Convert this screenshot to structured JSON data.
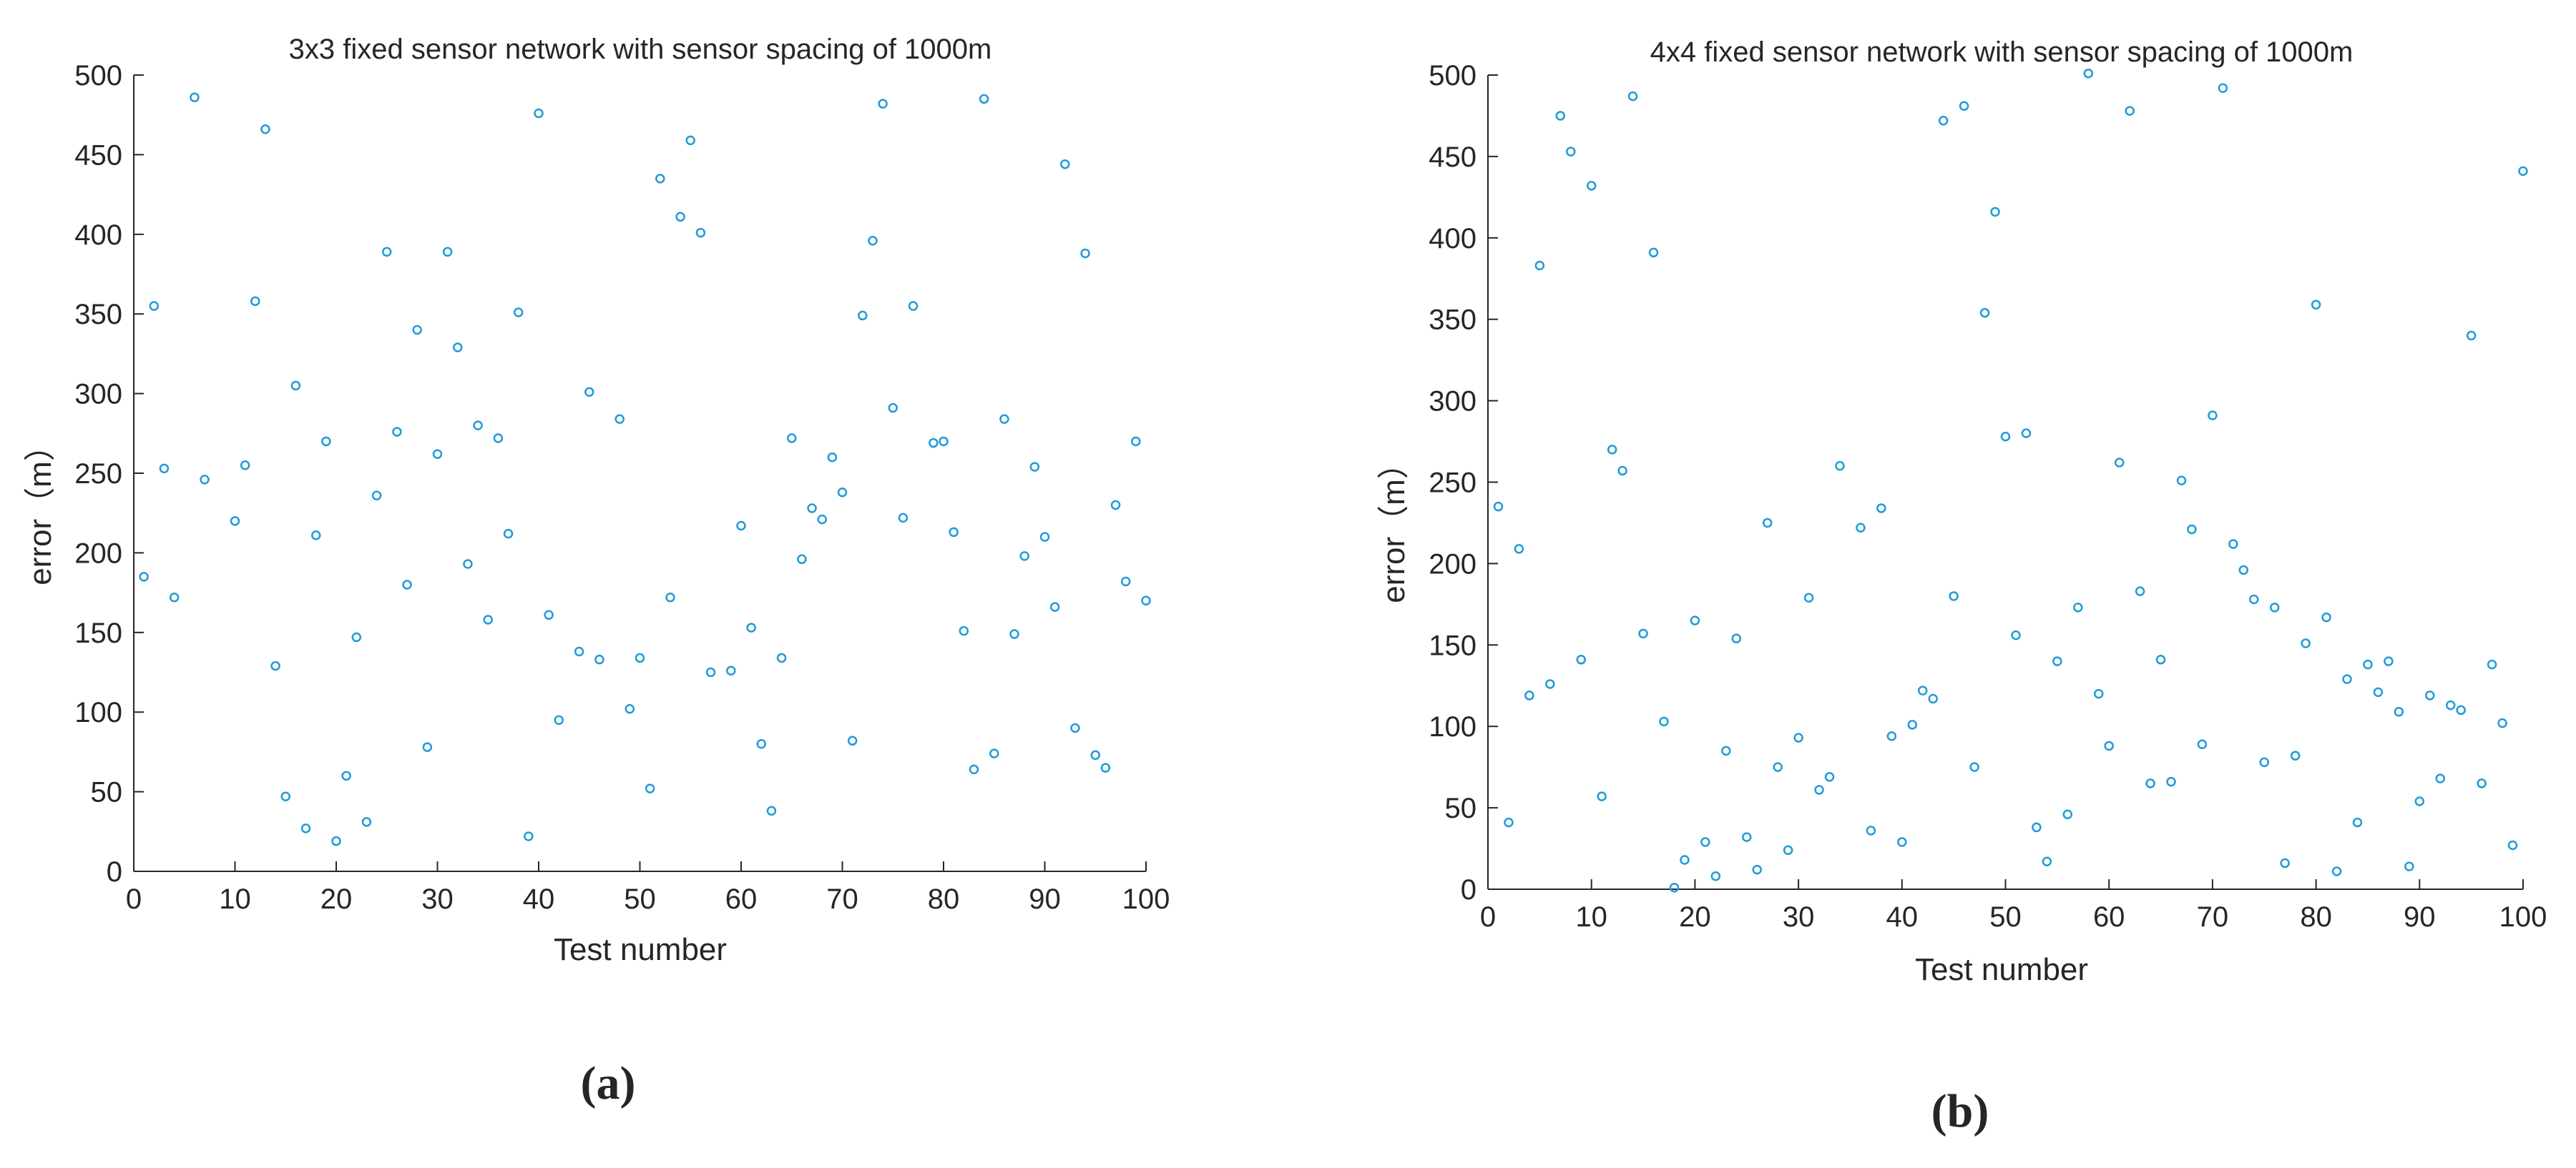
{
  "chart_data": [
    {
      "type": "scatter",
      "title": "3x3 fixed sensor network with sensor spacing of 1000m",
      "xlabel": "Test number",
      "ylabel": "error（m）",
      "xlim": [
        0,
        100
      ],
      "ylim": [
        0,
        500
      ],
      "x_ticks": [
        "0",
        "10",
        "20",
        "30",
        "40",
        "50",
        "60",
        "70",
        "80",
        "90",
        "100"
      ],
      "y_ticks": [
        "0",
        "50",
        "100",
        "150",
        "200",
        "250",
        "300",
        "350",
        "400",
        "450",
        "500"
      ],
      "grid": false,
      "marker": "open circle",
      "color": "#1f9bd7",
      "panel_label": "(a)",
      "series": [
        {
          "x": [
            1,
            2,
            3,
            4,
            6,
            7,
            10,
            11,
            12,
            13,
            14,
            15,
            16,
            17,
            18,
            19,
            20,
            21,
            22,
            23,
            24,
            25,
            26,
            27,
            28,
            29,
            30,
            31,
            32,
            33,
            34,
            35,
            36,
            37,
            38,
            39,
            40,
            41,
            42,
            44,
            45,
            46,
            48,
            49,
            50,
            51,
            52,
            53,
            54,
            55,
            56,
            57,
            59,
            60,
            61,
            62,
            63,
            64,
            65,
            66,
            67,
            68,
            69,
            70,
            71,
            72,
            73,
            74,
            75,
            76,
            77,
            79,
            80,
            81,
            82,
            83,
            84,
            85,
            86,
            87,
            88,
            89,
            90,
            91,
            92,
            93,
            94,
            95,
            96,
            97,
            98,
            99,
            100
          ],
          "y": [
            185,
            355,
            253,
            172,
            486,
            246,
            220,
            255,
            358,
            466,
            129,
            47,
            305,
            27,
            211,
            270,
            19,
            60,
            147,
            31,
            236,
            389,
            276,
            180,
            340,
            78,
            262,
            389,
            329,
            193,
            280,
            158,
            272,
            212,
            351,
            22,
            476,
            161,
            95,
            138,
            301,
            133,
            284,
            102,
            134,
            52,
            435,
            172,
            411,
            459,
            401,
            125,
            126,
            217,
            153,
            80,
            38,
            134,
            272,
            196,
            228,
            221,
            260,
            238,
            82,
            349,
            396,
            482,
            291,
            222,
            355,
            269,
            270,
            213,
            151,
            64,
            485,
            74,
            284,
            149,
            198,
            254,
            210,
            166,
            444,
            90,
            388,
            73,
            65,
            230,
            182,
            270,
            170
          ]
        }
      ]
    },
    {
      "type": "scatter",
      "title": "4x4 fixed sensor network with sensor spacing of 1000m",
      "xlabel": "Test number",
      "ylabel": "error（m）",
      "xlim": [
        0,
        100
      ],
      "ylim": [
        0,
        500
      ],
      "x_ticks": [
        "0",
        "10",
        "20",
        "30",
        "40",
        "50",
        "60",
        "70",
        "80",
        "90",
        "100"
      ],
      "y_ticks": [
        "0",
        "50",
        "100",
        "150",
        "200",
        "250",
        "300",
        "350",
        "400",
        "450",
        "500"
      ],
      "grid": false,
      "marker": "open circle",
      "color": "#1f9bd7",
      "panel_label": "(b)",
      "series": [
        {
          "x": [
            1,
            2,
            3,
            4,
            5,
            6,
            7,
            8,
            9,
            10,
            11,
            12,
            13,
            14,
            15,
            16,
            17,
            18,
            19,
            20,
            21,
            22,
            23,
            24,
            25,
            26,
            27,
            28,
            29,
            30,
            31,
            32,
            33,
            34,
            36,
            37,
            38,
            39,
            40,
            41,
            42,
            43,
            44,
            45,
            46,
            47,
            48,
            49,
            50,
            51,
            52,
            53,
            54,
            55,
            56,
            57,
            58,
            59,
            60,
            61,
            62,
            63,
            64,
            65,
            66,
            67,
            68,
            69,
            70,
            71,
            72,
            73,
            74,
            75,
            76,
            77,
            78,
            79,
            80,
            81,
            82,
            83,
            84,
            85,
            86,
            87,
            88,
            89,
            90,
            91,
            92,
            93,
            94,
            95,
            96,
            97,
            98,
            99,
            100
          ],
          "y": [
            235,
            41,
            209,
            119,
            383,
            126,
            475,
            453,
            141,
            432,
            57,
            270,
            257,
            487,
            157,
            391,
            103,
            1,
            18,
            165,
            29,
            8,
            85,
            154,
            32,
            12,
            225,
            75,
            24,
            93,
            179,
            61,
            69,
            260,
            222,
            36,
            234,
            94,
            29,
            101,
            122,
            117,
            472,
            180,
            481,
            75,
            354,
            416,
            278,
            156,
            280,
            38,
            17,
            140,
            46,
            173,
            501,
            120,
            88,
            262,
            478,
            183,
            65,
            141,
            66,
            251,
            221,
            89,
            291,
            492,
            212,
            196,
            178,
            78,
            173,
            16,
            82,
            151,
            359,
            167,
            11,
            129,
            41,
            138,
            121,
            140,
            109,
            14,
            54,
            119,
            68,
            113,
            110,
            340,
            65,
            138,
            102,
            27,
            441
          ]
        }
      ]
    }
  ]
}
